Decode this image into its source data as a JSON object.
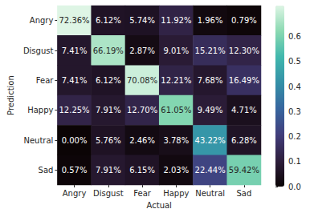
{
  "chart_data": {
    "type": "heatmap",
    "xlabel": "Actual",
    "ylabel": "Prediction",
    "categories": [
      "Angry",
      "Disgust",
      "Fear",
      "Happy",
      "Neutral",
      "Sad"
    ],
    "y_categories": [
      "Angry",
      "Disgust",
      "Fear",
      "Happy",
      "Neutral",
      "Sad"
    ],
    "values": [
      [
        0.7236,
        0.0612,
        0.0574,
        0.1192,
        0.0196,
        0.0079
      ],
      [
        0.0741,
        0.6619,
        0.0287,
        0.0901,
        0.1521,
        0.123
      ],
      [
        0.0741,
        0.0612,
        0.7008,
        0.1221,
        0.0768,
        0.1649
      ],
      [
        0.1225,
        0.0791,
        0.127,
        0.6105,
        0.0949,
        0.0471
      ],
      [
        0.0,
        0.0576,
        0.0246,
        0.0378,
        0.4322,
        0.0628
      ],
      [
        0.0057,
        0.0791,
        0.0615,
        0.0203,
        0.2244,
        0.5942
      ]
    ],
    "value_labels": [
      [
        "72.36%",
        "6.12%",
        "5.74%",
        "11.92%",
        "1.96%",
        "0.79%"
      ],
      [
        "7.41%",
        "66.19%",
        "2.87%",
        "9.01%",
        "15.21%",
        "12.30%"
      ],
      [
        "7.41%",
        "6.12%",
        "70.08%",
        "12.21%",
        "7.68%",
        "16.49%"
      ],
      [
        "12.25%",
        "7.91%",
        "12.70%",
        "61.05%",
        "9.49%",
        "4.71%"
      ],
      [
        "0.00%",
        "5.76%",
        "2.46%",
        "3.78%",
        "43.22%",
        "6.28%"
      ],
      [
        "0.57%",
        "7.91%",
        "6.15%",
        "2.03%",
        "22.44%",
        "59.42%"
      ]
    ],
    "data_labels": true,
    "colorbar": {
      "range": [
        0,
        0.7236
      ],
      "ticks": [
        {
          "value": 0,
          "label": "0.0"
        },
        {
          "value": 0.1,
          "label": "0.1"
        },
        {
          "value": 0.2,
          "label": "0.2"
        },
        {
          "value": 0.3,
          "label": "0.3"
        },
        {
          "value": 0.4,
          "label": "0.4"
        },
        {
          "value": 0.5,
          "label": "0.5"
        },
        {
          "value": 0.6,
          "label": "0.6"
        }
      ]
    }
  }
}
